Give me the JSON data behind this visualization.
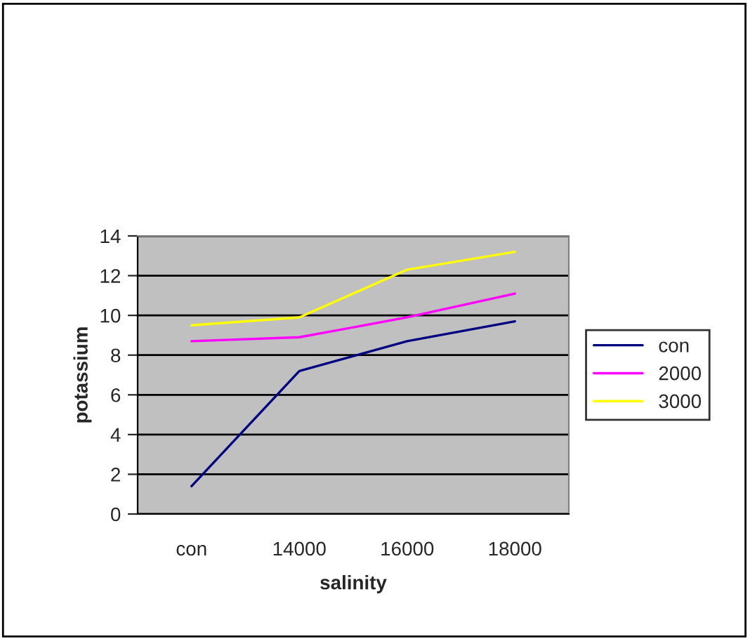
{
  "chart_data": {
    "type": "line",
    "xlabel": "salinity",
    "ylabel": "potassium",
    "categories": [
      "con",
      "14000",
      "16000",
      "18000"
    ],
    "series": [
      {
        "name": "con",
        "color": "#000080",
        "values": [
          1.4,
          7.2,
          8.7,
          9.7
        ]
      },
      {
        "name": "2000",
        "color": "#ff00ff",
        "values": [
          8.7,
          8.9,
          9.9,
          11.1
        ]
      },
      {
        "name": "3000",
        "color": "#ffff00",
        "values": [
          9.5,
          9.9,
          12.3,
          13.2
        ]
      }
    ],
    "ylim": [
      0,
      14
    ],
    "yticks": [
      0,
      2,
      4,
      6,
      8,
      10,
      12,
      14
    ],
    "grid": "y",
    "legend": "right",
    "marker": "none",
    "line_style": "solid"
  }
}
